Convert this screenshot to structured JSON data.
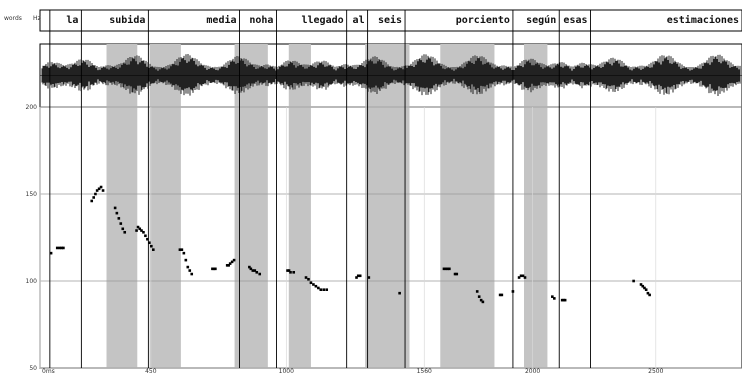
{
  "header": {
    "tier_label": "words",
    "unit_label": "Hz"
  },
  "words": [
    {
      "text": "la",
      "start": 40,
      "end": 168
    },
    {
      "text": "subida",
      "start": 168,
      "end": 440
    },
    {
      "text": "media",
      "start": 440,
      "end": 810
    },
    {
      "text": "noha",
      "start": 810,
      "end": 960
    },
    {
      "text": "llegado",
      "start": 960,
      "end": 1245
    },
    {
      "text": "al",
      "start": 1245,
      "end": 1330
    },
    {
      "text": "seis",
      "start": 1330,
      "end": 1482
    },
    {
      "text": "porciento",
      "start": 1482,
      "end": 1920
    },
    {
      "text": "según",
      "start": 1920,
      "end": 2108
    },
    {
      "text": "esas",
      "start": 2108,
      "end": 2235
    },
    {
      "text": "estimaciones",
      "start": 2235,
      "end": 2850
    }
  ],
  "chart_data": {
    "type": "scatter",
    "xlim": [
      0,
      2850
    ],
    "ylim": [
      50,
      200
    ],
    "yticks": [
      50,
      100,
      150,
      200
    ],
    "xticks": [
      0,
      450,
      1000,
      1560,
      2000,
      2500
    ],
    "xtick_labels": [
      "0ms",
      "450",
      "1000",
      "1560",
      "2000",
      "2500"
    ],
    "grid": true,
    "boundaries": [
      40,
      168,
      440,
      810,
      960,
      1245,
      1330,
      1482,
      1920,
      2108,
      2235
    ],
    "shaded_regions": [
      [
        270,
        395
      ],
      [
        445,
        572
      ],
      [
        790,
        925
      ],
      [
        1010,
        1100
      ],
      [
        1320,
        1500
      ],
      [
        1625,
        1845
      ],
      [
        1965,
        2060
      ]
    ],
    "points": [
      [
        45,
        116
      ],
      [
        70,
        119
      ],
      [
        80,
        119
      ],
      [
        88,
        119
      ],
      [
        95,
        119
      ],
      [
        210,
        146
      ],
      [
        218,
        148
      ],
      [
        225,
        150
      ],
      [
        232,
        152
      ],
      [
        240,
        153
      ],
      [
        248,
        154
      ],
      [
        256,
        152
      ],
      [
        305,
        142
      ],
      [
        312,
        139
      ],
      [
        320,
        136
      ],
      [
        328,
        133
      ],
      [
        336,
        130
      ],
      [
        344,
        128
      ],
      [
        392,
        129
      ],
      [
        398,
        131
      ],
      [
        405,
        130
      ],
      [
        412,
        129
      ],
      [
        420,
        128
      ],
      [
        428,
        126
      ],
      [
        436,
        124
      ],
      [
        444,
        122
      ],
      [
        452,
        120
      ],
      [
        460,
        118
      ],
      [
        568,
        118
      ],
      [
        576,
        118
      ],
      [
        584,
        116
      ],
      [
        592,
        112
      ],
      [
        600,
        108
      ],
      [
        608,
        106
      ],
      [
        616,
        104
      ],
      [
        700,
        107
      ],
      [
        706,
        107
      ],
      [
        712,
        107
      ],
      [
        760,
        109
      ],
      [
        766,
        109
      ],
      [
        772,
        110
      ],
      [
        780,
        111
      ],
      [
        788,
        112
      ],
      [
        850,
        108
      ],
      [
        856,
        107
      ],
      [
        864,
        106
      ],
      [
        872,
        106
      ],
      [
        880,
        105
      ],
      [
        892,
        104
      ],
      [
        1005,
        106
      ],
      [
        1011,
        106
      ],
      [
        1017,
        105
      ],
      [
        1030,
        105
      ],
      [
        1080,
        102
      ],
      [
        1090,
        101
      ],
      [
        1100,
        99
      ],
      [
        1110,
        98
      ],
      [
        1120,
        97
      ],
      [
        1130,
        96
      ],
      [
        1140,
        95
      ],
      [
        1152,
        95
      ],
      [
        1164,
        95
      ],
      [
        1285,
        102
      ],
      [
        1292,
        103
      ],
      [
        1300,
        103
      ],
      [
        1335,
        102
      ],
      [
        1460,
        93
      ],
      [
        1640,
        107
      ],
      [
        1648,
        107
      ],
      [
        1655,
        107
      ],
      [
        1662,
        107
      ],
      [
        1685,
        104
      ],
      [
        1692,
        104
      ],
      [
        1775,
        94
      ],
      [
        1783,
        91
      ],
      [
        1791,
        89
      ],
      [
        1798,
        88
      ],
      [
        1868,
        92
      ],
      [
        1875,
        92
      ],
      [
        1920,
        94
      ],
      [
        1945,
        102
      ],
      [
        1953,
        103
      ],
      [
        1961,
        103
      ],
      [
        1969,
        102
      ],
      [
        2080,
        91
      ],
      [
        2088,
        90
      ],
      [
        2120,
        89
      ],
      [
        2126,
        89
      ],
      [
        2132,
        89
      ],
      [
        2410,
        100
      ],
      [
        2440,
        98
      ],
      [
        2447,
        97
      ],
      [
        2454,
        96
      ],
      [
        2461,
        95
      ],
      [
        2468,
        93
      ],
      [
        2475,
        92
      ]
    ]
  }
}
